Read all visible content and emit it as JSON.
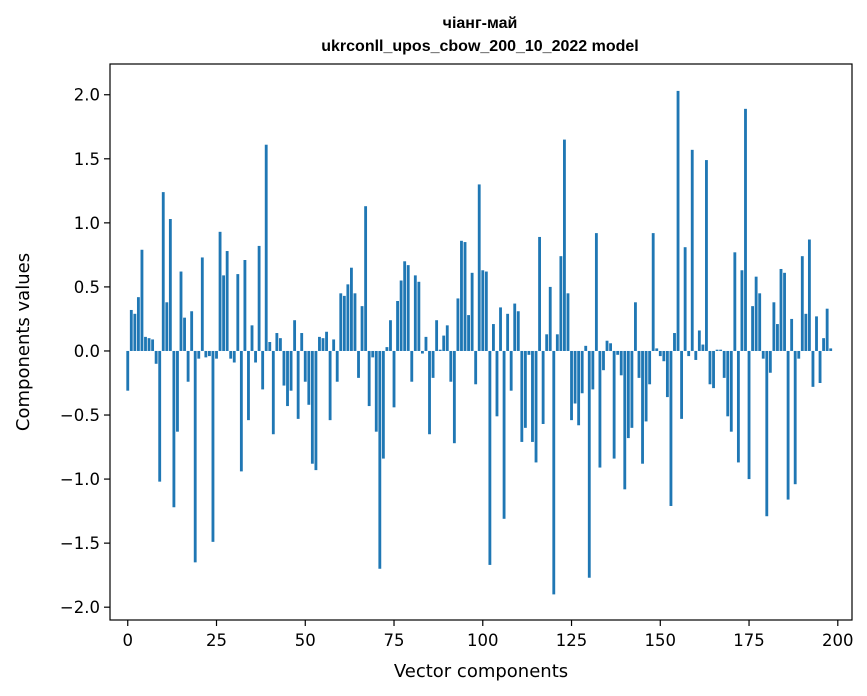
{
  "chart_data": {
    "type": "bar",
    "title_line1": "чіанг-май",
    "title_line2": "ukrconll_upos_cbow_200_10_2022 model",
    "xlabel": "Vector components",
    "ylabel": "Components values",
    "xlim": [
      -5,
      204
    ],
    "ylim": [
      -2.1,
      2.24
    ],
    "xticks": [
      0,
      25,
      50,
      75,
      100,
      125,
      150,
      175,
      200
    ],
    "yticks": [
      -2.0,
      -1.5,
      -1.0,
      -0.5,
      0.0,
      0.5,
      1.0,
      1.5,
      2.0
    ],
    "ytick_labels": [
      "−2.0",
      "−1.5",
      "−1.0",
      "−0.5",
      "0.0",
      "0.5",
      "1.0",
      "1.5",
      "2.0"
    ],
    "bar_color": "#1f77b4",
    "values": [
      -0.31,
      0.32,
      0.29,
      0.42,
      0.79,
      0.11,
      0.1,
      0.09,
      -0.1,
      -1.02,
      1.24,
      0.38,
      1.03,
      -1.22,
      -0.63,
      0.62,
      0.26,
      -0.24,
      0.31,
      -1.65,
      -0.06,
      0.73,
      -0.05,
      -0.04,
      -1.49,
      -0.06,
      0.93,
      0.59,
      0.78,
      -0.06,
      -0.09,
      0.6,
      -0.94,
      0.71,
      -0.54,
      0.2,
      -0.09,
      0.82,
      -0.3,
      1.61,
      0.07,
      -0.65,
      0.14,
      0.1,
      -0.27,
      -0.43,
      -0.31,
      0.24,
      -0.53,
      0.14,
      -0.24,
      -0.42,
      -0.88,
      -0.93,
      0.11,
      0.1,
      0.15,
      -0.54,
      0.09,
      -0.24,
      0.45,
      0.43,
      0.52,
      0.65,
      0.45,
      -0.21,
      0.35,
      1.13,
      -0.43,
      -0.05,
      -0.63,
      -1.7,
      -0.84,
      0.03,
      0.24,
      -0.44,
      0.39,
      0.55,
      0.7,
      0.67,
      -0.24,
      0.59,
      0.54,
      -0.02,
      0.11,
      -0.65,
      -0.21,
      0.24,
      0.01,
      0.12,
      0.2,
      -0.24,
      -0.72,
      0.41,
      0.86,
      0.85,
      0.28,
      0.61,
      -0.26,
      1.3,
      0.63,
      0.62,
      -1.67,
      0.21,
      -0.51,
      0.34,
      -1.31,
      0.29,
      -0.31,
      0.37,
      0.31,
      -0.71,
      -0.6,
      -0.03,
      -0.71,
      -0.87,
      0.89,
      -0.57,
      0.13,
      0.5,
      -1.9,
      0.13,
      0.74,
      1.65,
      0.45,
      -0.54,
      -0.41,
      -0.58,
      -0.33,
      0.04,
      -1.77,
      -0.3,
      0.92,
      -0.91,
      -0.15,
      0.08,
      0.06,
      -0.84,
      -0.03,
      -0.19,
      -1.08,
      -0.68,
      -0.6,
      0.38,
      -0.21,
      -0.88,
      -0.55,
      -0.26,
      0.92,
      0.02,
      -0.04,
      -0.08,
      -0.36,
      -1.21,
      0.14,
      2.03,
      -0.53,
      0.81,
      -0.04,
      1.57,
      -0.07,
      0.16,
      0.05,
      1.49,
      -0.26,
      -0.29,
      0.01,
      0.01,
      -0.21,
      -0.51,
      -0.63,
      0.77,
      -0.87,
      0.63,
      1.89,
      -1.0,
      0.35,
      0.58,
      0.45,
      -0.06,
      -1.29,
      -0.17,
      0.38,
      0.21,
      0.64,
      0.61,
      -1.16,
      0.25,
      -1.04,
      -0.06,
      0.74,
      0.29,
      0.87,
      -0.28,
      0.27,
      -0.25,
      0.1,
      0.33,
      0.02
    ]
  }
}
